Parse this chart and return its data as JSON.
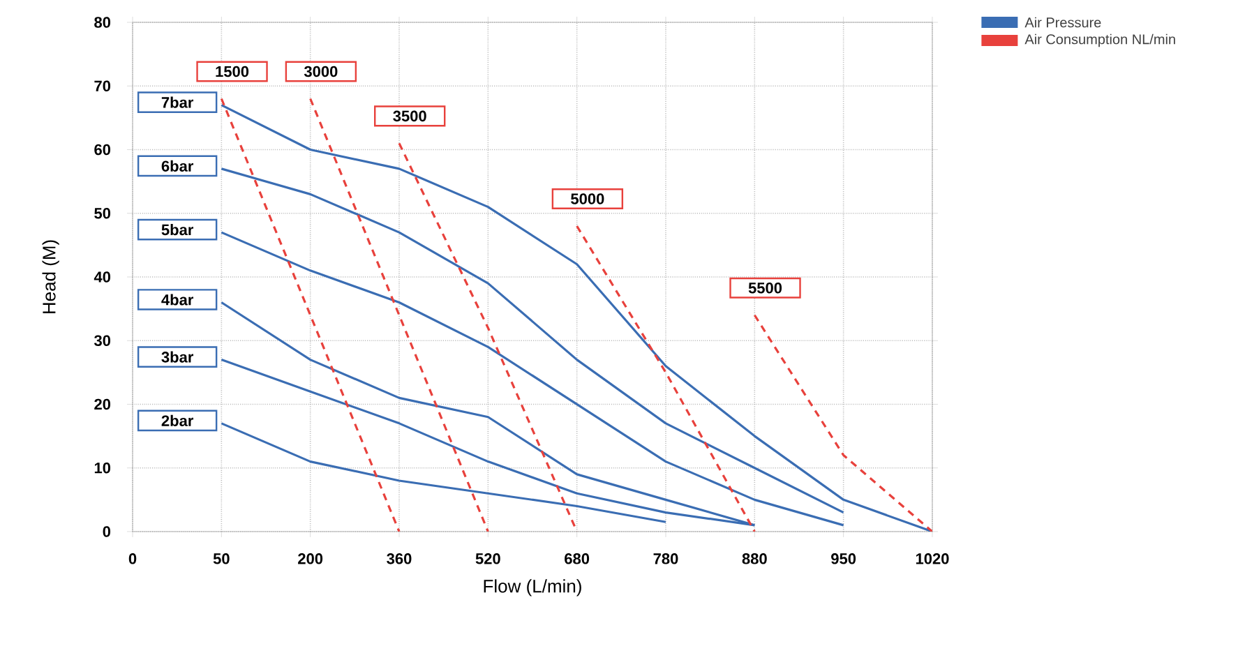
{
  "chart_data": {
    "type": "line",
    "xlabel": "Flow (L/min)",
    "ylabel": "Head (M)",
    "categories": [
      "0",
      "50",
      "200",
      "360",
      "520",
      "680",
      "780",
      "880",
      "950",
      "1020"
    ],
    "ylim": [
      0,
      80
    ],
    "yticks": [
      0,
      10,
      20,
      30,
      40,
      50,
      60,
      70,
      80
    ],
    "grid": true,
    "series": [
      {
        "name": "7bar",
        "color": "#3a6db3",
        "line_style": "solid",
        "values": [
          null,
          67,
          60,
          57,
          51,
          42,
          26,
          15,
          5,
          0
        ]
      },
      {
        "name": "6bar",
        "color": "#3a6db3",
        "line_style": "solid",
        "values": [
          null,
          57,
          53,
          47,
          39,
          27,
          17,
          10,
          3,
          null
        ]
      },
      {
        "name": "5bar",
        "color": "#3a6db3",
        "line_style": "solid",
        "values": [
          null,
          47,
          41,
          36,
          29,
          20,
          11,
          5,
          1,
          null
        ]
      },
      {
        "name": "4bar",
        "color": "#3a6db3",
        "line_style": "solid",
        "values": [
          null,
          36,
          27,
          21,
          18,
          9,
          5,
          1,
          null,
          null
        ]
      },
      {
        "name": "3bar",
        "color": "#3a6db3",
        "line_style": "solid",
        "values": [
          null,
          27,
          22,
          17,
          11,
          6,
          3,
          1,
          null,
          null
        ]
      },
      {
        "name": "2bar",
        "color": "#3a6db3",
        "line_style": "solid",
        "values": [
          null,
          17,
          11,
          8,
          6,
          4,
          1.5,
          null,
          null,
          null
        ]
      },
      {
        "name": "1500",
        "color": "#e8413c",
        "line_style": "dashed",
        "values": [
          null,
          68,
          34,
          0,
          null,
          null,
          null,
          null,
          null,
          null
        ]
      },
      {
        "name": "3000",
        "color": "#e8413c",
        "line_style": "dashed",
        "values": [
          null,
          null,
          68,
          34,
          0,
          null,
          null,
          null,
          null,
          null
        ]
      },
      {
        "name": "3500",
        "color": "#e8413c",
        "line_style": "dashed",
        "values": [
          null,
          null,
          null,
          61,
          32,
          0,
          null,
          null,
          null,
          null
        ]
      },
      {
        "name": "5000",
        "color": "#e8413c",
        "line_style": "dashed",
        "values": [
          null,
          null,
          null,
          null,
          null,
          48,
          25,
          0,
          null,
          null
        ]
      },
      {
        "name": "5500",
        "color": "#e8413c",
        "line_style": "dashed",
        "values": [
          null,
          null,
          null,
          null,
          null,
          null,
          null,
          34,
          12,
          0
        ]
      }
    ],
    "annotations": [
      "Air Pressure",
      "Air Consumption NL/min"
    ]
  }
}
